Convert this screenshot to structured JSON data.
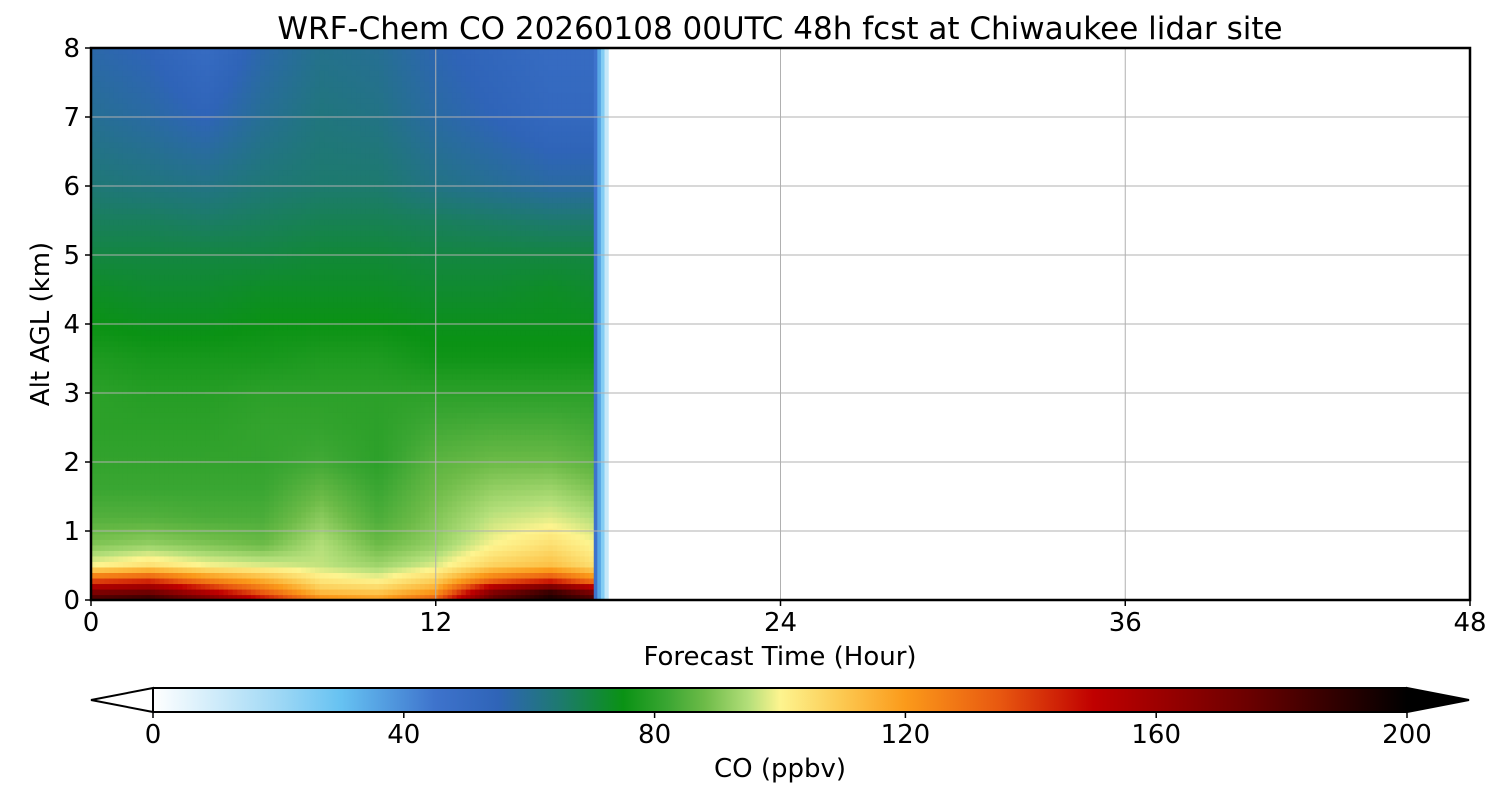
{
  "chart_data": {
    "type": "heatmap",
    "title": "WRF-Chem CO  20260108 00UTC 48h fcst at Chiwaukee lidar site",
    "xlabel": "Forecast Time (Hour)",
    "ylabel": "Alt AGL (km)",
    "xlim": [
      0,
      48
    ],
    "ylim": [
      0,
      8
    ],
    "xticks": [
      0,
      12,
      24,
      36,
      48
    ],
    "xtick_labels": [
      "0",
      "12",
      "24",
      "36",
      "48"
    ],
    "yticks": [
      0,
      1,
      2,
      3,
      4,
      5,
      6,
      7,
      8
    ],
    "ytick_labels": [
      "0",
      "1",
      "2",
      "3",
      "4",
      "5",
      "6",
      "7",
      "8"
    ],
    "grid": true,
    "data_end_hour": 18,
    "colorbar": {
      "label": "CO  (ppbv)",
      "min": 0,
      "max": 200,
      "extend": "both",
      "ticks": [
        0,
        40,
        80,
        120,
        160,
        200
      ],
      "tick_labels": [
        "0",
        "40",
        "80",
        "120",
        "160",
        "200"
      ],
      "stops": [
        {
          "value": 0,
          "color": "#ffffff"
        },
        {
          "value": 20,
          "color": "#9fd8f5"
        },
        {
          "value": 30,
          "color": "#66c2f2"
        },
        {
          "value": 45,
          "color": "#3e73cc"
        },
        {
          "value": 55,
          "color": "#2f64b8"
        },
        {
          "value": 65,
          "color": "#1d7a6e"
        },
        {
          "value": 75,
          "color": "#0a9214"
        },
        {
          "value": 82,
          "color": "#3aa632"
        },
        {
          "value": 88,
          "color": "#6dbb48"
        },
        {
          "value": 95,
          "color": "#b4df7a"
        },
        {
          "value": 100,
          "color": "#fdf48f"
        },
        {
          "value": 110,
          "color": "#fcc850"
        },
        {
          "value": 120,
          "color": "#fb9a1a"
        },
        {
          "value": 135,
          "color": "#e85810"
        },
        {
          "value": 150,
          "color": "#c00000"
        },
        {
          "value": 175,
          "color": "#6a0000"
        },
        {
          "value": 200,
          "color": "#000000"
        }
      ]
    },
    "field": {
      "hours": [
        0,
        2,
        4,
        6,
        8,
        10,
        12,
        14,
        16,
        17.5
      ],
      "altitudes_km": [
        0,
        0.15,
        0.3,
        0.5,
        0.8,
        1.2,
        1.6,
        2.0,
        2.5,
        3.0,
        3.5,
        4.0,
        4.5,
        5.0,
        5.5,
        6.0,
        7.0,
        8.0
      ],
      "co_ppbv": [
        [
          185,
          190,
          175,
          150,
          125,
          120,
          135,
          180,
          195,
          185
        ],
        [
          165,
          170,
          150,
          130,
          110,
          108,
          118,
          165,
          185,
          165
        ],
        [
          135,
          140,
          125,
          115,
          103,
          100,
          108,
          130,
          140,
          125
        ],
        [
          100,
          105,
          100,
          98,
          96,
          93,
          98,
          108,
          112,
          105
        ],
        [
          90,
          92,
          90,
          88,
          95,
          88,
          92,
          100,
          105,
          100
        ],
        [
          85,
          85,
          84,
          84,
          91,
          84,
          90,
          96,
          98,
          95
        ],
        [
          82,
          82,
          82,
          82,
          87,
          82,
          88,
          92,
          93,
          90
        ],
        [
          81,
          81,
          81,
          81,
          83,
          80,
          86,
          88,
          88,
          86
        ],
        [
          80,
          80,
          80,
          81,
          81,
          80,
          83,
          84,
          84,
          83
        ],
        [
          80,
          79,
          79,
          80,
          80,
          80,
          80,
          80,
          80,
          80
        ],
        [
          78,
          77,
          77,
          77,
          78,
          78,
          76,
          76,
          76,
          76
        ],
        [
          75,
          74,
          74,
          75,
          75,
          75,
          74,
          74,
          74,
          74
        ],
        [
          73,
          72,
          72,
          73,
          73,
          73,
          72,
          72,
          73,
          72
        ],
        [
          70,
          70,
          70,
          70,
          71,
          71,
          70,
          70,
          70,
          70
        ],
        [
          67,
          67,
          66,
          67,
          68,
          68,
          67,
          66,
          65,
          65
        ],
        [
          64,
          63,
          62,
          64,
          65,
          65,
          62,
          60,
          58,
          58
        ],
        [
          60,
          58,
          55,
          60,
          63,
          62,
          58,
          55,
          52,
          52
        ],
        [
          57,
          55,
          50,
          57,
          61,
          60,
          56,
          53,
          50,
          50
        ]
      ]
    }
  }
}
